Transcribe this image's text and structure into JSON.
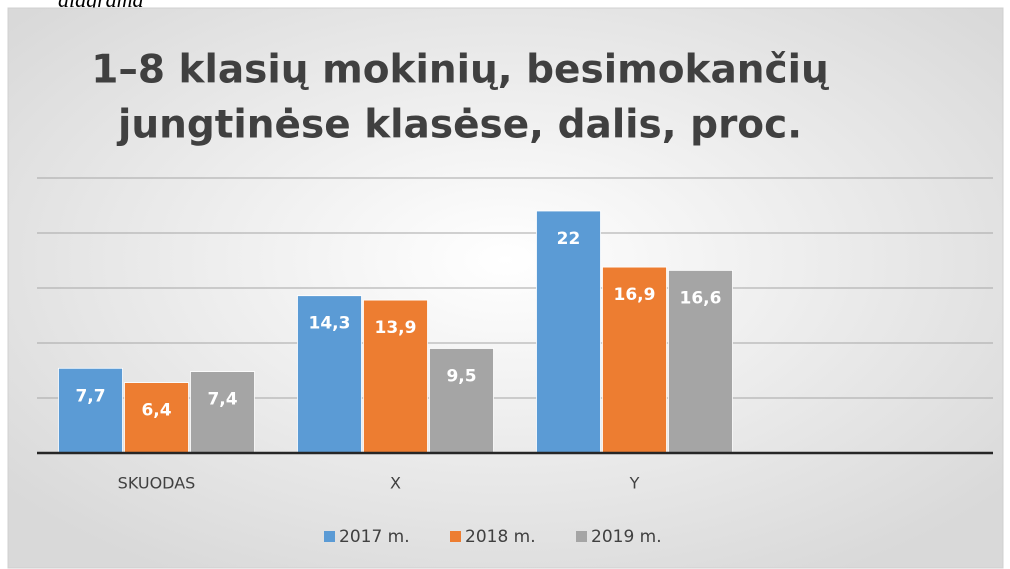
{
  "caption": "diagrama",
  "chart_data": {
    "type": "bar",
    "title": [
      "1–8 klasių mokinių, besimokančių",
      "jungtinėse klasėse, dalis, proc."
    ],
    "categories": [
      "SKUODAS",
      "X",
      "Y",
      null
    ],
    "series": [
      {
        "name": "2017 m.",
        "color": "#5b9bd5",
        "values": [
          7.7,
          14.3,
          22,
          null
        ],
        "value_labels": [
          "7,7",
          "14,3",
          "22",
          null
        ]
      },
      {
        "name": "2018 m.",
        "color": "#ed7d31",
        "values": [
          6.4,
          13.9,
          16.9,
          null
        ],
        "value_labels": [
          "6,4",
          "13,9",
          "16,9",
          null
        ]
      },
      {
        "name": "2019 m.",
        "color": "#a5a5a5",
        "values": [
          7.4,
          9.5,
          16.6,
          null
        ],
        "value_labels": [
          "7,4",
          "9,5",
          "16,6",
          null
        ]
      }
    ],
    "ylim": [
      0,
      25
    ],
    "yticks": [
      0,
      5,
      10,
      15,
      20,
      25
    ],
    "grid": true,
    "legend": "bottom"
  }
}
